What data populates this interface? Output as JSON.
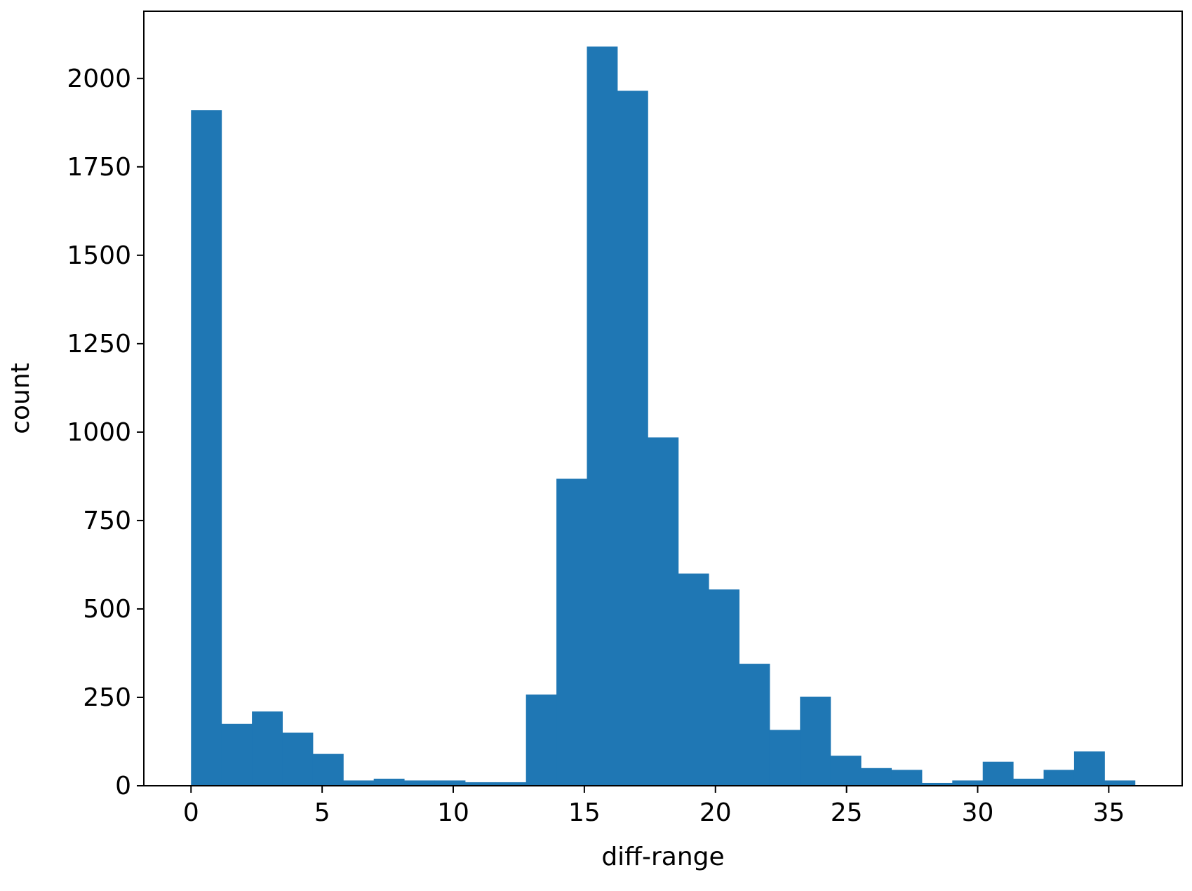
{
  "chart_data": {
    "type": "bar",
    "title": "",
    "xlabel": "diff-range",
    "ylabel": "count",
    "xlim": [
      -1.8,
      37.8
    ],
    "ylim": [
      0,
      2190
    ],
    "xticks": [
      0,
      5,
      10,
      15,
      20,
      25,
      30,
      35
    ],
    "xtick_labels": [
      "0",
      "5",
      "10",
      "15",
      "20",
      "25",
      "30",
      "35"
    ],
    "yticks": [
      0,
      250,
      500,
      750,
      1000,
      1250,
      1500,
      1750,
      2000
    ],
    "ytick_labels": [
      "0",
      "250",
      "500",
      "750",
      "1000",
      "1250",
      "1500",
      "1750",
      "2000"
    ],
    "bin_edges": [
      0,
      1.161,
      2.323,
      3.484,
      4.645,
      5.806,
      6.968,
      8.129,
      9.29,
      10.452,
      11.613,
      12.774,
      13.935,
      15.097,
      16.258,
      17.419,
      18.581,
      19.742,
      20.903,
      22.065,
      23.226,
      24.387,
      25.548,
      26.71,
      27.871,
      29.032,
      30.194,
      31.355,
      32.516,
      33.677,
      34.839,
      36
    ],
    "values": [
      1910,
      175,
      210,
      150,
      90,
      15,
      20,
      15,
      15,
      10,
      10,
      258,
      868,
      2090,
      1965,
      985,
      600,
      555,
      345,
      158,
      252,
      85,
      50,
      45,
      8,
      15,
      68,
      20,
      45,
      97,
      15
    ],
    "grid": false,
    "colors": {
      "bar": "#1f77b4",
      "axis": "#000000",
      "background": "#ffffff"
    }
  }
}
